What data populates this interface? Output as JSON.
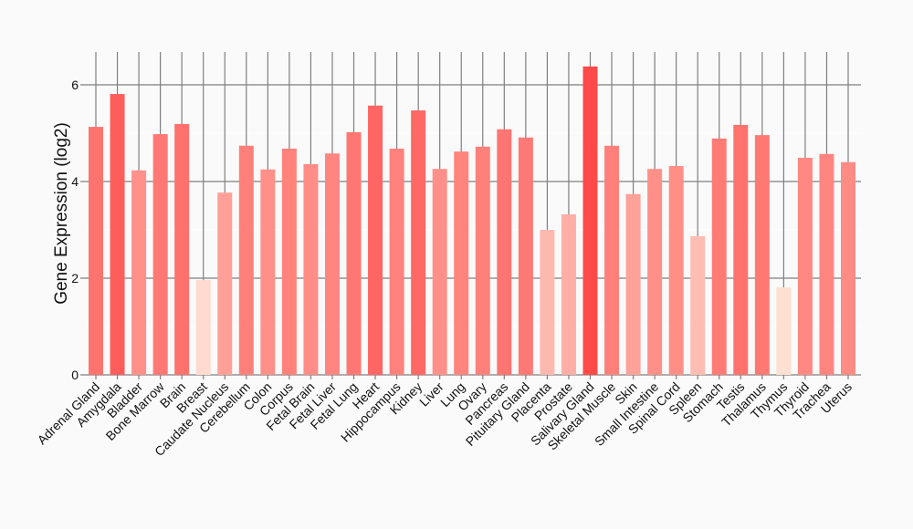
{
  "chart_data": {
    "type": "bar",
    "title": "",
    "xlabel": "",
    "ylabel": "Gene Expression (log2)",
    "ylim": [
      0,
      6.7
    ],
    "yticks": [
      0,
      2,
      4,
      6
    ],
    "grid": true,
    "color_low": "#fee0d2",
    "color_high": "#ff4a4a",
    "categories": [
      "Adrenal Gland",
      "Amygdala",
      "Bladder",
      "Bone Marrow",
      "Brain",
      "Breast",
      "Caudate Nucleus",
      "Cerebellum",
      "Colon",
      "Corpus",
      "Fetal Brain",
      "Fetal Liver",
      "Fetal Lung",
      "Heart",
      "Hippocampus",
      "Kidney",
      "Liver",
      "Lung",
      "Ovary",
      "Pancreas",
      "Pituitary Gland",
      "Placenta",
      "Prostate",
      "Salivary Gland",
      "Skeletal Muscle",
      "Skin",
      "Small Intestine",
      "Spinal Cord",
      "Spleen",
      "Stomach",
      "Testis",
      "Thalamus",
      "Thymus",
      "Thyroid",
      "Trachea",
      "Uterus"
    ],
    "values": [
      5.13,
      5.81,
      4.23,
      4.98,
      5.19,
      1.96,
      3.77,
      4.74,
      4.25,
      4.68,
      4.36,
      4.58,
      5.02,
      5.57,
      4.68,
      5.47,
      4.26,
      4.62,
      4.72,
      5.08,
      4.91,
      3.0,
      3.32,
      6.38,
      4.74,
      3.74,
      4.26,
      4.32,
      2.87,
      4.89,
      5.17,
      4.96,
      1.81,
      4.49,
      4.57,
      4.4
    ]
  }
}
